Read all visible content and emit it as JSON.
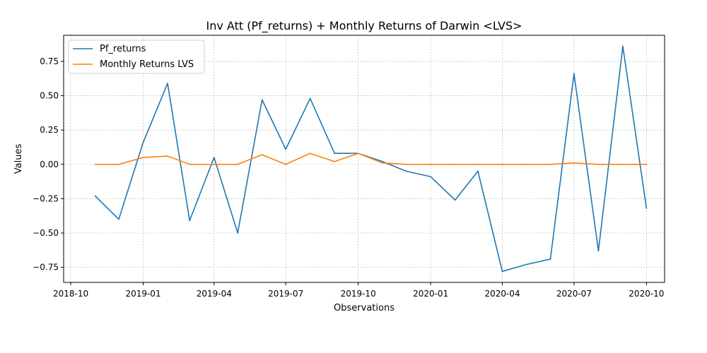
{
  "chart_data": {
    "type": "line",
    "title": "Inv Att (Pf_returns) + Monthly Returns of Darwin <LVS>",
    "xlabel": "Observations",
    "ylabel": "Values",
    "x_ticks": [
      "2018-10",
      "2019-01",
      "2019-04",
      "2019-07",
      "2019-10",
      "2020-01",
      "2020-04",
      "2020-07",
      "2020-10"
    ],
    "y_ticks": [
      "−0.75",
      "−0.50",
      "−0.25",
      "0.00",
      "0.25",
      "0.50",
      "0.75"
    ],
    "xlim": [
      "2018-09-22",
      "2020-10-24"
    ],
    "ylim": [
      -0.86,
      0.94
    ],
    "grid": true,
    "legend_position": "top-left",
    "x": [
      "2018-11-01",
      "2018-12-01",
      "2019-01-01",
      "2019-02-01",
      "2019-03-01",
      "2019-04-01",
      "2019-05-01",
      "2019-06-01",
      "2019-07-01",
      "2019-08-01",
      "2019-09-01",
      "2019-10-01",
      "2019-11-01",
      "2019-12-01",
      "2020-01-01",
      "2020-02-01",
      "2020-03-01",
      "2020-04-01",
      "2020-05-01",
      "2020-06-01",
      "2020-07-01",
      "2020-08-01",
      "2020-09-01",
      "2020-10-01"
    ],
    "series": [
      {
        "name": "Pf_returns",
        "color": "#1f77b4",
        "values": [
          -0.23,
          -0.4,
          0.16,
          0.59,
          -0.41,
          0.05,
          -0.5,
          0.47,
          0.11,
          0.48,
          0.08,
          0.08,
          0.02,
          -0.05,
          -0.09,
          -0.26,
          -0.05,
          -0.78,
          -0.73,
          -0.69,
          0.66,
          -0.63,
          0.86,
          -0.32
        ]
      },
      {
        "name": "Monthly Returns LVS",
        "color": "#ff7f0e",
        "values": [
          0.0,
          0.0,
          0.05,
          0.06,
          0.0,
          0.0,
          0.0,
          0.07,
          0.0,
          0.08,
          0.02,
          0.08,
          0.01,
          0.0,
          0.0,
          0.0,
          0.0,
          0.0,
          0.0,
          0.0,
          0.01,
          0.0,
          0.0,
          0.0
        ]
      }
    ]
  }
}
